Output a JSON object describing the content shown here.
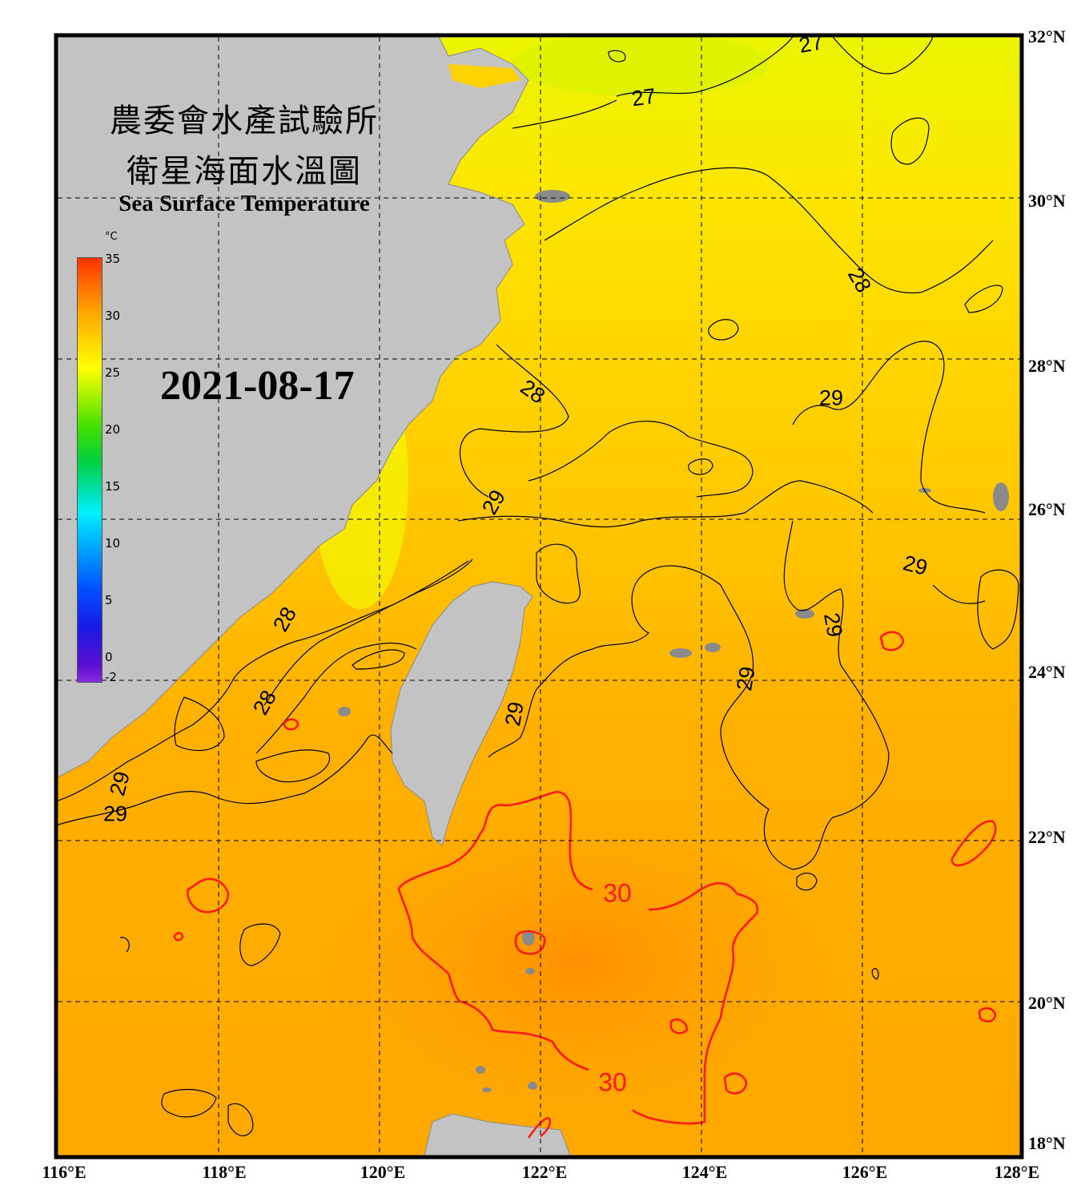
{
  "title": {
    "line1": "農委會水產試驗所",
    "line2": "衛星海面水溫圖",
    "english": "Sea Surface Temperature"
  },
  "date": "2021-08-17",
  "colorbar": {
    "unit": "°C",
    "ticks": [
      "35",
      "30",
      "25",
      "20",
      "15",
      "10",
      "5",
      "0",
      "-2"
    ]
  },
  "axes": {
    "lon_labels": [
      "116°E",
      "118°E",
      "120°E",
      "122°E",
      "124°E",
      "126°E",
      "128°E"
    ],
    "lat_labels": [
      "32°N",
      "30°N",
      "28°N",
      "26°N",
      "24°N",
      "22°N",
      "20°N",
      "18°N"
    ]
  },
  "contour_labels": [
    "27",
    "27",
    "28",
    "28",
    "29",
    "29",
    "29",
    "28",
    "29",
    "29",
    "28",
    "29",
    "29",
    "29",
    "29",
    "30",
    "30"
  ],
  "colors": {
    "land": "#c3c3c3",
    "frame": "#000000",
    "contour_line": "#000000",
    "contour_30": "#ff1a1a"
  }
}
